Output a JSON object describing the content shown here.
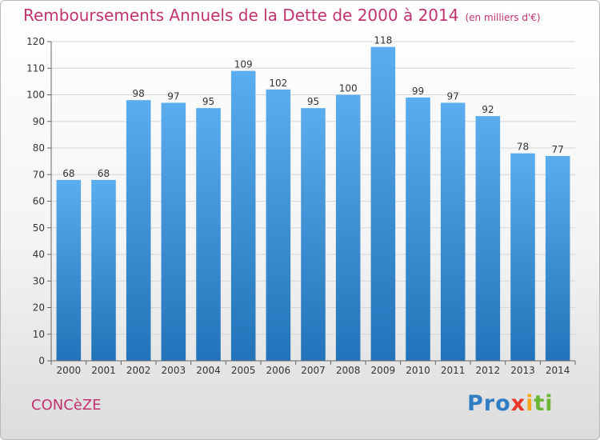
{
  "chart_data": {
    "type": "bar",
    "title": "Remboursements Annuels de la Dette de 2000 à 2014",
    "unit_label": "(en milliers d'€)",
    "categories": [
      "2000",
      "2001",
      "2002",
      "2003",
      "2004",
      "2005",
      "2006",
      "2007",
      "2008",
      "2009",
      "2010",
      "2011",
      "2012",
      "2013",
      "2014"
    ],
    "values": [
      68,
      68,
      98,
      97,
      95,
      109,
      102,
      95,
      100,
      118,
      99,
      97,
      92,
      78,
      77
    ],
    "yticks": [
      0,
      10,
      20,
      30,
      40,
      50,
      60,
      70,
      80,
      90,
      100,
      110,
      120
    ],
    "ylim": [
      0,
      120
    ],
    "grid": true,
    "bar_color_top": "#5aadee",
    "bar_color_bottom": "#2273b9",
    "xlabel": "",
    "ylabel": ""
  },
  "footer": {
    "commune": "CONCèZE",
    "logo_parts": [
      "Pro",
      "x",
      "i",
      "ti"
    ]
  },
  "colors": {
    "title": "#c0336f",
    "grid": "#d6d6d6",
    "axis_text": "#333333"
  }
}
